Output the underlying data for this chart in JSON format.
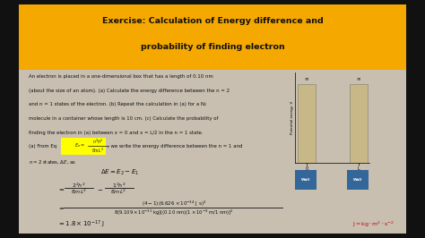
{
  "title_line1": "Exercise: Calculation of Energy difference and",
  "title_line2": "probability of finding electron",
  "title_bg": "#F5A800",
  "title_color": "#111111",
  "content_bg": "#c8bfb0",
  "outer_bg": "#111111",
  "body_text_lines": [
    "An electron is placed in a one-dimensional box that has a length of 0.10 nm",
    "(about the size of an atom). (a) Calculate the energy difference between the n = 2",
    "and n = 1 states of the electron. (b) Repeat the calculation in (a) for a N₂",
    "molecule in a container whose length is 10 cm. (c) Calculate the probability of",
    "finding the electron in (a) between x = 0 and x = L/2 in the n = 1 state."
  ],
  "eq_highlight_bg": "#FFFF00",
  "unit_color": "#cc0000",
  "bar_color": "#c8b888",
  "bar_edge_color": "#888877",
  "wall_label_bg": "#336699",
  "wall_label_color": "#ffffff",
  "text_color": "#111111",
  "content_bg_light": "#d0c8b8"
}
